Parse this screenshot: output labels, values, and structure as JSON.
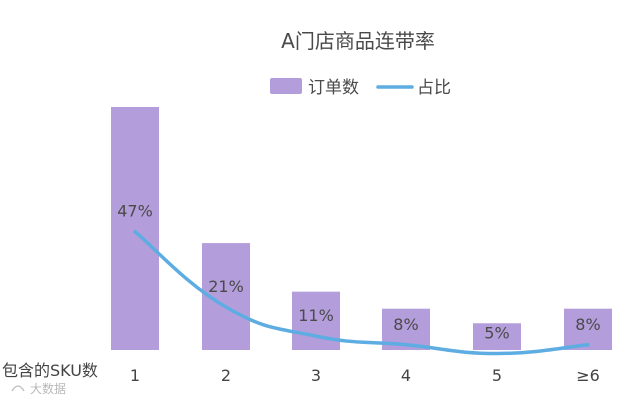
{
  "chart_data": {
    "type": "bar",
    "title": "A门店商品连带率",
    "x_axis_name": "包含的SKU数",
    "categories": [
      "1",
      "2",
      "3",
      "4",
      "5",
      "≥6"
    ],
    "series": [
      {
        "name": "订单数",
        "type": "bar",
        "values": [
          100,
          44,
          24,
          17,
          11,
          17
        ]
      },
      {
        "name": "占比",
        "type": "line",
        "values": [
          0.47,
          0.21,
          0.11,
          0.08,
          0.05,
          0.08
        ],
        "labels": [
          "47%",
          "21%",
          "11%",
          "8%",
          "5%",
          "8%"
        ]
      }
    ],
    "bar_ylim": [
      0,
      100
    ],
    "line_ylim": [
      0,
      1
    ],
    "grid": false,
    "legend_position": "top",
    "colors": {
      "bar": "#b39ddb",
      "line": "#5dade2",
      "text": "#4a4a4a"
    }
  },
  "watermark": "大数据"
}
